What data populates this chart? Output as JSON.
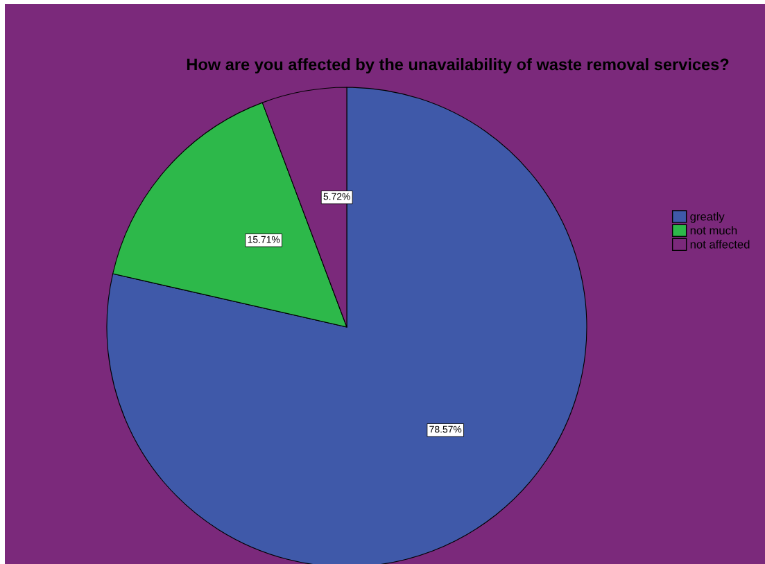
{
  "chart_data": {
    "type": "pie",
    "title": "How are you affected by the unavailability of waste removal services?",
    "categories": [
      "greatly",
      "not much",
      "not affected"
    ],
    "values": [
      78.57,
      15.71,
      5.72
    ],
    "value_labels": [
      "78.57%",
      "15.71%",
      "5.72%"
    ],
    "colors": [
      "#3f59a9",
      "#2db84a",
      "#7b297b"
    ],
    "legend": "right"
  }
}
